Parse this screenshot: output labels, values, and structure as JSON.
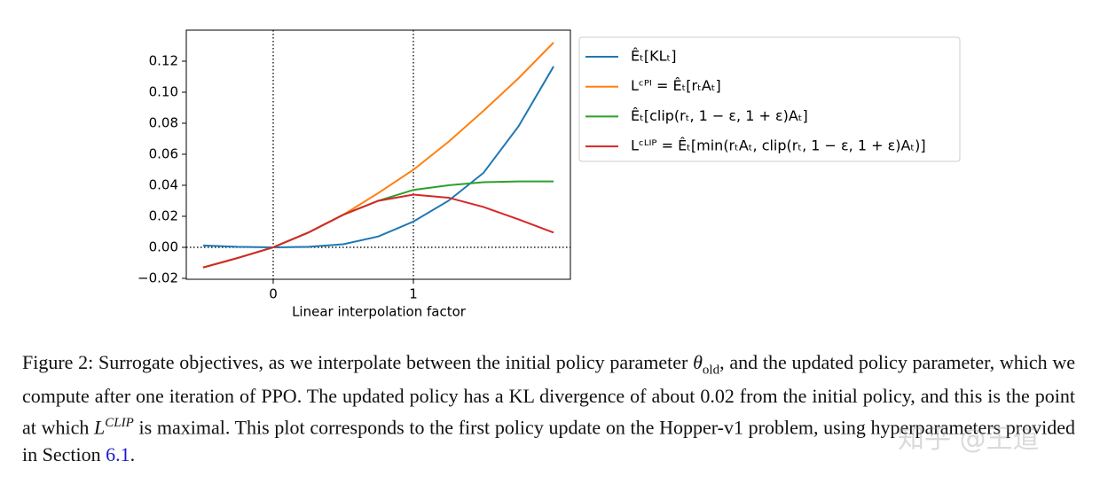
{
  "chart_data": {
    "type": "line",
    "x_label": "Linear interpolation factor",
    "x": [
      -0.5,
      -0.25,
      0,
      0.25,
      0.5,
      0.75,
      1.0,
      1.25,
      1.5,
      1.75,
      2.0
    ],
    "series": [
      {
        "name": "Êₜ[KLₜ]",
        "color": "#1f77b4",
        "values": [
          0.0012,
          0.0003,
          0,
          0.0003,
          0.002,
          0.007,
          0.0166,
          0.03,
          0.048,
          0.078,
          0.1166
        ]
      },
      {
        "name": "Lᶜᴾᴵ = Êₜ[rₜAₜ]",
        "color": "#ff7f0e",
        "values": [
          -0.013,
          -0.0068,
          0,
          0.0095,
          0.021,
          0.035,
          0.05,
          0.068,
          0.088,
          0.109,
          0.132
        ]
      },
      {
        "name": "Êₜ[clip(rₜ, 1 − ε, 1 + ε)Aₜ]",
        "color": "#2ca02c",
        "values": [
          -0.013,
          -0.0068,
          0,
          0.0095,
          0.021,
          0.03,
          0.037,
          0.04,
          0.042,
          0.0425,
          0.0425
        ]
      },
      {
        "name": "Lᶜᴸᴵᴾ = Êₜ[min(rₜAₜ, clip(rₜ, 1 − ε, 1 + ε)Aₜ)]",
        "color": "#d62728",
        "values": [
          -0.013,
          -0.0068,
          0,
          0.0095,
          0.021,
          0.03,
          0.034,
          0.032,
          0.026,
          0.018,
          0.0095
        ]
      }
    ],
    "xlim": [
      -0.62,
      2.12
    ],
    "xticks": [
      0,
      1
    ],
    "ylim": [
      -0.0206,
      0.14
    ],
    "yticks": [
      {
        "value": -0.02,
        "label": "−0.02"
      },
      {
        "value": 0,
        "label": "0.00"
      },
      0.02,
      0.04,
      0.06,
      0.08,
      {
        "value": 0.1,
        "label": "0.10"
      },
      0.12
    ],
    "vlines": [
      0,
      1
    ],
    "hlines": [
      0
    ],
    "legend": "upper right outside"
  },
  "caption": {
    "prefix": "Figure 2: Surrogate objectives, as we interpolate between the initial policy parameter ",
    "theta": "θ",
    "theta_sub": "old",
    "middle": ", and the updated policy parameter, which we compute after one iteration of PPO. The updated policy has a KL divergence of about 0.02 from the initial policy, and this is the point at which ",
    "l": "L",
    "l_sup": "CLIP",
    "after": " is maximal. This plot corresponds to the first policy update on the Hopper-v1 problem, using hyperparameters provided in Section ",
    "ref": "6.1",
    "end": "."
  },
  "watermark": "知乎 @王道"
}
